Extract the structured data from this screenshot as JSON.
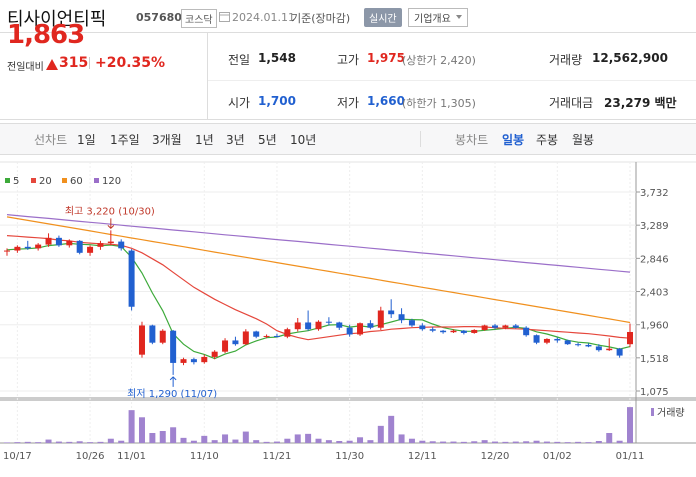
{
  "header": {
    "name": "티사이언티픽",
    "code": "057680",
    "market": "코스닥",
    "date": "2024.01.11",
    "basis": "기준(장마감)",
    "realtime": "실시간",
    "company": "기업개요"
  },
  "quote": {
    "price": "1,863",
    "change_label": "전일대비",
    "change": "315",
    "change_pct": "+20.35%"
  },
  "stats": [
    {
      "label": "전일",
      "value": "1,548"
    },
    {
      "label": "고가",
      "value": "1,975",
      "note": "(상한가 2,420)"
    },
    {
      "label": "거래량",
      "value": "12,562,900"
    },
    {
      "label": "시가",
      "value": "1,700"
    },
    {
      "label": "저가",
      "value": "1,660",
      "note": "(하한가 1,305)"
    },
    {
      "label": "거래대금",
      "value": "23,279 백만"
    }
  ],
  "toolbar": {
    "line_label": "선차트",
    "periods": [
      "1일",
      "1주일",
      "3개월",
      "1년",
      "3년",
      "5년",
      "10년"
    ],
    "candle_label": "봉차트",
    "candle_periods": [
      "일봉",
      "주봉",
      "월봉"
    ]
  },
  "chart_data": {
    "type": "candlestick",
    "categories": [
      null,
      "10/17",
      null,
      null,
      null,
      null,
      null,
      null,
      "10/26",
      null,
      null,
      null,
      "11/01",
      null,
      null,
      null,
      null,
      null,
      null,
      "11/10",
      null,
      null,
      null,
      null,
      null,
      null,
      "11/21",
      null,
      null,
      null,
      null,
      null,
      null,
      "11/30",
      null,
      null,
      null,
      null,
      null,
      null,
      "12/11",
      null,
      null,
      null,
      null,
      null,
      null,
      "12/20",
      null,
      null,
      null,
      null,
      null,
      "01/02",
      null,
      null,
      null,
      null,
      null,
      null,
      "01/11"
    ],
    "open": [
      2940,
      2950,
      3000,
      2980,
      3030,
      3120,
      3020,
      3080,
      2920,
      3000,
      3050,
      3070,
      2950,
      1560,
      1950,
      1720,
      1880,
      1450,
      1500,
      1460,
      1530,
      1600,
      1750,
      1700,
      1870,
      1800,
      1810,
      1800,
      1900,
      1990,
      1900,
      2000,
      1990,
      1920,
      1830,
      1980,
      1920,
      2150,
      2100,
      2020,
      1950,
      1900,
      1880,
      1860,
      1880,
      1850,
      1890,
      1950,
      1920,
      1950,
      1920,
      1820,
      1720,
      1770,
      1750,
      1700,
      1690,
      1670,
      1620,
      1640,
      1700
    ],
    "high": [
      2980,
      3020,
      3080,
      3050,
      3180,
      3150,
      3100,
      3090,
      3020,
      3080,
      3220,
      3100,
      2970,
      2000,
      1960,
      1900,
      1890,
      1520,
      1520,
      1560,
      1620,
      1780,
      1800,
      1900,
      1880,
      1830,
      1840,
      1920,
      2050,
      2150,
      2020,
      2060,
      2000,
      1960,
      1990,
      2020,
      2200,
      2300,
      2180,
      2040,
      1980,
      1930,
      1890,
      1900,
      1890,
      1900,
      1960,
      1970,
      1960,
      1970,
      1940,
      1830,
      1780,
      1790,
      1760,
      1720,
      1710,
      1700,
      1780,
      1650,
      1975
    ],
    "low": [
      2880,
      2920,
      2960,
      2950,
      3000,
      3000,
      2990,
      2900,
      2880,
      2960,
      3020,
      2950,
      2150,
      1520,
      1700,
      1700,
      1290,
      1420,
      1430,
      1440,
      1500,
      1580,
      1680,
      1690,
      1780,
      1780,
      1790,
      1780,
      1870,
      1880,
      1880,
      1950,
      1890,
      1800,
      1810,
      1900,
      1890,
      2050,
      1980,
      1930,
      1880,
      1860,
      1840,
      1850,
      1830,
      1840,
      1880,
      1900,
      1900,
      1910,
      1800,
      1700,
      1700,
      1720,
      1690,
      1670,
      1660,
      1600,
      1610,
      1520,
      1660
    ],
    "close": [
      2950,
      3000,
      2980,
      3030,
      3120,
      3020,
      3080,
      2920,
      3000,
      3050,
      3070,
      2980,
      2200,
      1950,
      1720,
      1880,
      1450,
      1500,
      1460,
      1530,
      1600,
      1750,
      1700,
      1870,
      1800,
      1810,
      1800,
      1900,
      1990,
      1900,
      2000,
      1990,
      1920,
      1830,
      1980,
      1920,
      2150,
      2100,
      2020,
      1950,
      1900,
      1880,
      1860,
      1880,
      1850,
      1890,
      1950,
      1920,
      1950,
      1920,
      1820,
      1720,
      1770,
      1750,
      1700,
      1690,
      1670,
      1620,
      1640,
      1548,
      1863
    ],
    "volume": [
      200000,
      300000,
      400000,
      300000,
      1200000,
      500000,
      400000,
      600000,
      300000,
      400000,
      1500000,
      800000,
      11500000,
      9000000,
      3500000,
      4200000,
      5500000,
      1800000,
      800000,
      2500000,
      1000000,
      3000000,
      1200000,
      4000000,
      1000000,
      400000,
      500000,
      1500000,
      3000000,
      3200000,
      1500000,
      1000000,
      700000,
      800000,
      2000000,
      1000000,
      6000000,
      9500000,
      3000000,
      1500000,
      800000,
      600000,
      500000,
      500000,
      400000,
      600000,
      1000000,
      500000,
      400000,
      500000,
      600000,
      800000,
      500000,
      400000,
      300000,
      400000,
      300000,
      700000,
      3500000,
      800000,
      12562900
    ],
    "series": [
      {
        "name": "5",
        "color": "#3daa3a",
        "values": [
          2960,
          2970,
          2975,
          2985,
          3016,
          3030,
          3046,
          3034,
          3028,
          3014,
          3024,
          3004,
          2860,
          2650,
          2384,
          2146,
          1840,
          1700,
          1602,
          1564,
          1508,
          1568,
          1608,
          1690,
          1744,
          1786,
          1796,
          1836,
          1860,
          1880,
          1918,
          1956,
          1960,
          1928,
          1944,
          1928,
          1960,
          1996,
          2034,
          2028,
          2024,
          1970,
          1922,
          1894,
          1874,
          1872,
          1886,
          1898,
          1912,
          1926,
          1912,
          1866,
          1836,
          1796,
          1752,
          1726,
          1716,
          1686,
          1664,
          1634,
          1668
        ]
      },
      {
        "name": "20",
        "color": "#e5473c",
        "values": [
          3150,
          3140,
          3130,
          3120,
          3110,
          3090,
          3080,
          3060,
          3050,
          3040,
          3035,
          3020,
          2980,
          2920,
          2840,
          2760,
          2660,
          2560,
          2460,
          2380,
          2300,
          2230,
          2160,
          2100,
          2040,
          1970,
          1880,
          1830,
          1790,
          1760,
          1780,
          1800,
          1820,
          1840,
          1850,
          1870,
          1880,
          1900,
          1910,
          1920,
          1925,
          1930,
          1930,
          1930,
          1935,
          1935,
          1930,
          1920,
          1910,
          1905,
          1900,
          1890,
          1880,
          1870,
          1860,
          1850,
          1840,
          1825,
          1810,
          1790,
          1780
        ]
      },
      {
        "name": "60",
        "color": "#f0901e",
        "values": [
          3400,
          3377,
          3353,
          3330,
          3306,
          3283,
          3259,
          3236,
          3212,
          3189,
          3165,
          3142,
          3118,
          3095,
          3071,
          3048,
          3024,
          3001,
          2977,
          2954,
          2930,
          2907,
          2883,
          2860,
          2836,
          2813,
          2789,
          2766,
          2742,
          2719,
          2695,
          2672,
          2648,
          2625,
          2601,
          2578,
          2554,
          2531,
          2507,
          2484,
          2460,
          2437,
          2413,
          2390,
          2366,
          2343,
          2319,
          2296,
          2272,
          2249,
          2225,
          2202,
          2178,
          2155,
          2131,
          2108,
          2084,
          2061,
          2037,
          2014,
          1990
        ]
      },
      {
        "name": "120",
        "color": "#9b6fc9",
        "values": [
          3430,
          3417,
          3404,
          3392,
          3379,
          3366,
          3353,
          3340,
          3328,
          3315,
          3302,
          3289,
          3276,
          3264,
          3251,
          3238,
          3225,
          3212,
          3200,
          3187,
          3174,
          3161,
          3148,
          3136,
          3123,
          3110,
          3097,
          3084,
          3072,
          3059,
          3046,
          3033,
          3020,
          3008,
          2995,
          2982,
          2969,
          2956,
          2944,
          2931,
          2918,
          2905,
          2892,
          2880,
          2867,
          2854,
          2841,
          2828,
          2816,
          2803,
          2790,
          2777,
          2764,
          2752,
          2739,
          2726,
          2713,
          2700,
          2688,
          2675,
          2662
        ]
      }
    ],
    "ylim": [
      1075,
      3732
    ],
    "yticks": [
      {
        "value": 3732,
        "label": "3,732"
      },
      {
        "value": 3289,
        "label": "3,289"
      },
      {
        "value": 2846,
        "label": "2,846"
      },
      {
        "value": 2403,
        "label": "2,403"
      },
      {
        "value": 1960,
        "label": "1,960"
      },
      {
        "value": 1518,
        "label": "1,518"
      },
      {
        "value": 1075,
        "label": "1,075"
      }
    ],
    "volume_ylim": [
      0,
      14000000
    ],
    "volume_name": "거래량",
    "annotations": [
      {
        "text": "최고 3,220 (10/30)"
      },
      {
        "text": "최저 1,290 (11/07)"
      }
    ],
    "up_color": "#e0271f",
    "down_color": "#2160d0",
    "volume_color": "#a083cf"
  }
}
